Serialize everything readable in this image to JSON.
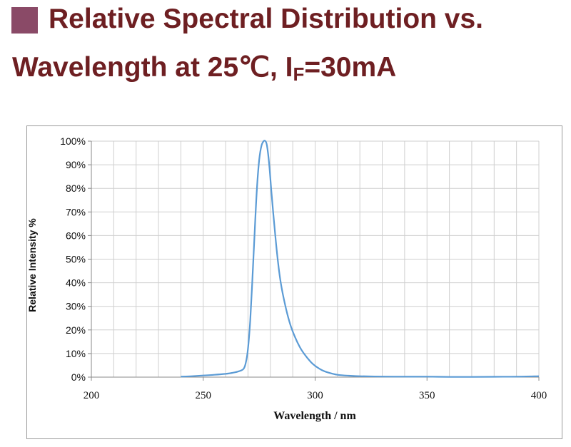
{
  "heading": {
    "line1": "Relative Spectral Distribution vs.",
    "line2_prefix": "Wavelength at 25℃, I",
    "line2_sub": "F",
    "line2_suffix": "=30mA",
    "accent_color": "#6e1f22",
    "marker_color": "#8a4a67"
  },
  "chart_data": {
    "type": "line",
    "title": "Relative Spectral Distribution vs. Wavelength at 25℃, IF=30mA",
    "xlabel": "Wavelength / nm",
    "ylabel": "Relative Intensity %",
    "xlim": [
      200,
      400
    ],
    "ylim": [
      0,
      100
    ],
    "x_ticks": [
      200,
      250,
      300,
      350,
      400
    ],
    "x_tick_labels": [
      "200",
      "250",
      "300",
      "350",
      "400"
    ],
    "x_minor_step": 10,
    "y_ticks": [
      0,
      10,
      20,
      30,
      40,
      50,
      60,
      70,
      80,
      90,
      100
    ],
    "y_tick_labels": [
      "0%",
      "10%",
      "20%",
      "30%",
      "40%",
      "50%",
      "60%",
      "70%",
      "80%",
      "90%",
      "100%"
    ],
    "grid": true,
    "series": [
      {
        "name": "Relative Intensity",
        "color": "#5b9bd5",
        "x": [
          240,
          245,
          250,
          255,
          260,
          263,
          266,
          268,
          269,
          270,
          271,
          272,
          273,
          274,
          275,
          276,
          277,
          277.8,
          278.5,
          279.5,
          280.5,
          282,
          283.5,
          285,
          287,
          289,
          291,
          293,
          295,
          298,
          300,
          303,
          306,
          310,
          315,
          320,
          330,
          340,
          350,
          360,
          370,
          380,
          390,
          400
        ],
        "values": [
          0.2,
          0.4,
          0.7,
          1.0,
          1.4,
          1.8,
          2.5,
          3.5,
          6,
          12,
          24,
          42,
          62,
          80,
          92,
          98,
          100,
          100,
          98,
          90,
          78,
          62,
          48,
          38,
          29,
          22,
          17,
          13,
          10,
          6.5,
          4.8,
          3.0,
          1.9,
          1.0,
          0.6,
          0.4,
          0.25,
          0.2,
          0.2,
          0.1,
          0.1,
          0.15,
          0.2,
          0.4
        ]
      }
    ]
  }
}
